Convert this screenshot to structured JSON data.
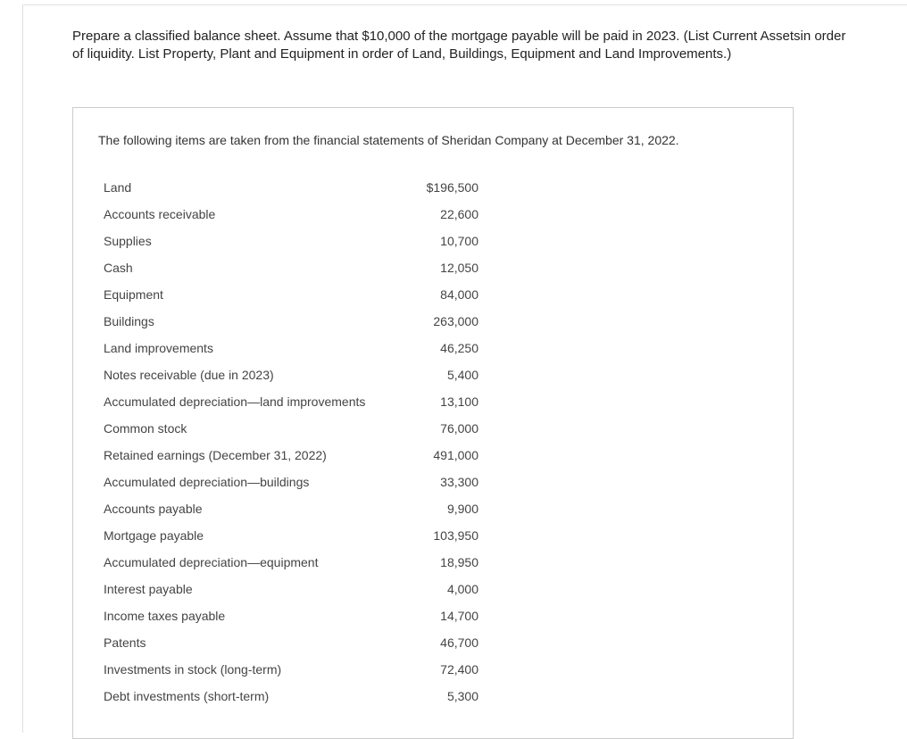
{
  "instructions": "Prepare a classified balance sheet. Assume that $10,000 of the mortgage payable will be paid in 2023. (List Current Assetsin order of liquidity. List Property, Plant and Equipment in order of Land, Buildings, Equipment and Land Improvements.)",
  "statement": {
    "intro": "The following items are taken from the financial statements of Sheridan Company at December 31, 2022.",
    "items": [
      {
        "label": "Land",
        "value": "$196,500"
      },
      {
        "label": "Accounts receivable",
        "value": "22,600"
      },
      {
        "label": "Supplies",
        "value": "10,700"
      },
      {
        "label": "Cash",
        "value": "12,050"
      },
      {
        "label": "Equipment",
        "value": "84,000"
      },
      {
        "label": "Buildings",
        "value": "263,000"
      },
      {
        "label": "Land improvements",
        "value": "46,250"
      },
      {
        "label": "Notes receivable (due in 2023)",
        "value": "5,400"
      },
      {
        "label": "Accumulated depreciation—land improvements",
        "value": "13,100"
      },
      {
        "label": "Common stock",
        "value": "76,000"
      },
      {
        "label": "Retained earnings (December 31, 2022)",
        "value": "491,000"
      },
      {
        "label": "Accumulated depreciation—buildings",
        "value": "33,300"
      },
      {
        "label": "Accounts payable",
        "value": "9,900"
      },
      {
        "label": "Mortgage payable",
        "value": "103,950"
      },
      {
        "label": "Accumulated depreciation—equipment",
        "value": "18,950"
      },
      {
        "label": "Interest payable",
        "value": "4,000"
      },
      {
        "label": "Income taxes payable",
        "value": "14,700"
      },
      {
        "label": "Patents",
        "value": "46,700"
      },
      {
        "label": "Investments in stock (long-term)",
        "value": "72,400"
      },
      {
        "label": "Debt investments (short-term)",
        "value": "5,300"
      }
    ]
  },
  "colors": {
    "text_primary": "#222222",
    "text_secondary": "#444444",
    "border": "#cccccc",
    "divider": "#e0e0e0",
    "background": "#ffffff"
  },
  "typography": {
    "instructions_fontsize": 15,
    "intro_fontsize": 14,
    "item_fontsize": 14
  }
}
